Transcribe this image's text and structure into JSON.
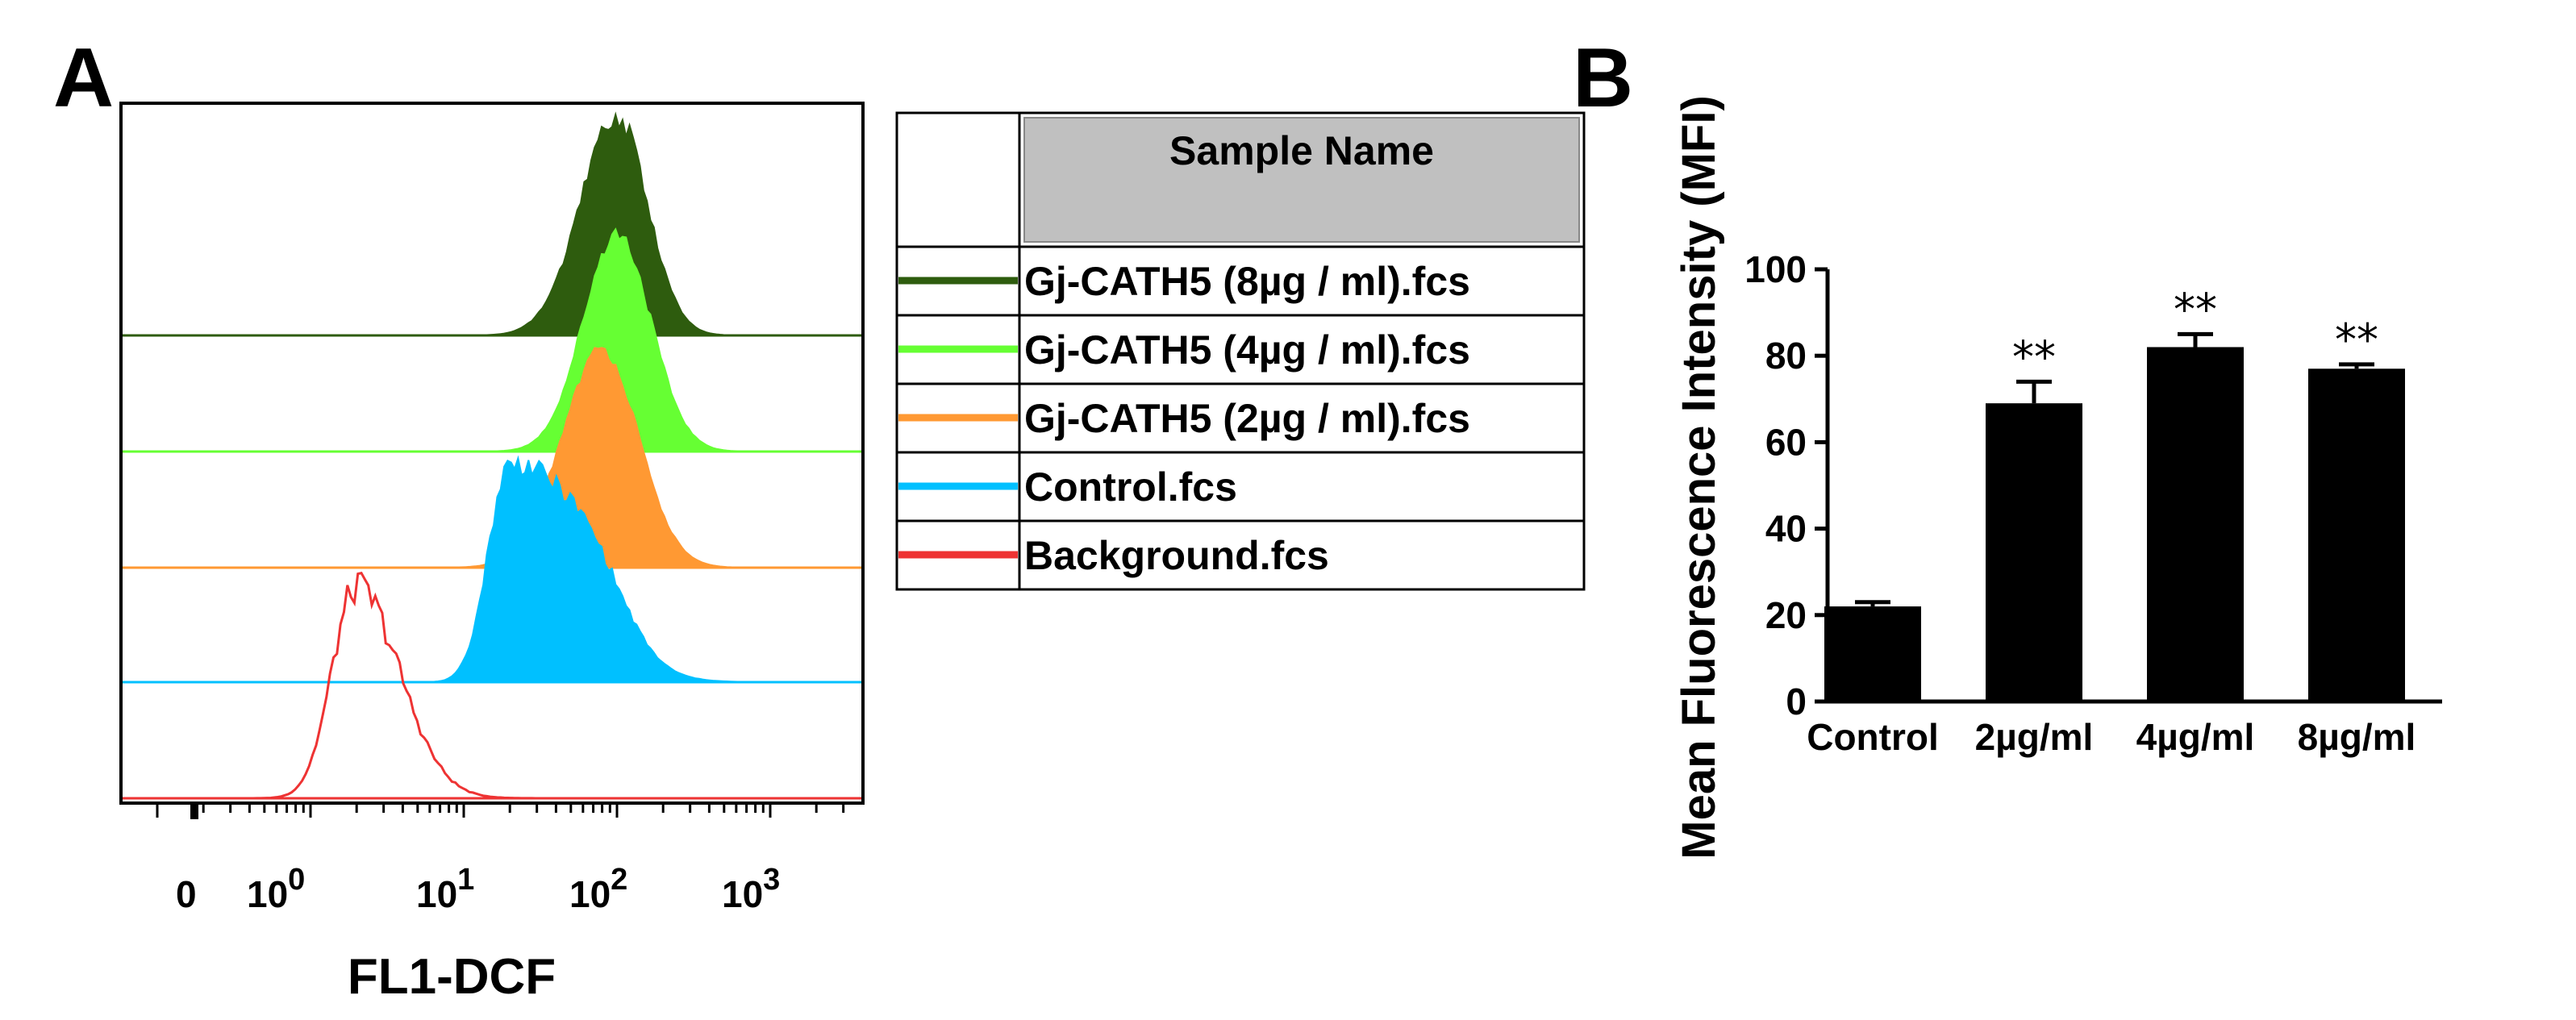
{
  "panel_a": {
    "label": "A",
    "legend": {
      "header": "Sample Name",
      "entries": [
        {
          "name": "Gj-CATH5 (8µg / ml).fcs",
          "color": "#2e5c0e"
        },
        {
          "name": "Gj-CATH5 (4µg / ml).fcs",
          "color": "#66ff33"
        },
        {
          "name": "Gj-CATH5 (2µg / ml).fcs",
          "color": "#ff9933"
        },
        {
          "name": "Control.fcs",
          "color": "#00c0ff"
        },
        {
          "name": "Background.fcs",
          "color": "#ee3333"
        }
      ]
    }
  },
  "panel_b": {
    "label": "B"
  },
  "chart_data": [
    {
      "type": "area",
      "subtype": "stacked-offset histogram (flow cytometry)",
      "xlabel": "FL1-DCF",
      "xscale": "log",
      "xticks": [
        {
          "base": "0",
          "exp": ""
        },
        {
          "base": "10",
          "exp": "0"
        },
        {
          "base": "10",
          "exp": "1"
        },
        {
          "base": "10",
          "exp": "2"
        },
        {
          "base": "10",
          "exp": "3"
        }
      ],
      "series": [
        {
          "name": "Background.fcs",
          "color": "#ee3333",
          "filled": false,
          "peak_log10": 0.3
        },
        {
          "name": "Control.fcs",
          "color": "#00c0ff",
          "filled": true,
          "peak_log10": 1.3
        },
        {
          "name": "Gj-CATH5 (2µg / ml).fcs",
          "color": "#ff9933",
          "filled": true,
          "peak_log10": 1.9
        },
        {
          "name": "Gj-CATH5 (4µg / ml).fcs",
          "color": "#66ff33",
          "filled": true,
          "peak_log10": 2.0
        },
        {
          "name": "Gj-CATH5 (8µg / ml).fcs",
          "color": "#2e5c0e",
          "filled": true,
          "peak_log10": 2.0
        }
      ]
    },
    {
      "type": "bar",
      "ylabel": "Mean Fluorescence Intensity (MFI)",
      "ylim": [
        0,
        100
      ],
      "yticks": [
        "0",
        "20",
        "40",
        "60",
        "80",
        "100"
      ],
      "categories": [
        "Control",
        "2µg/ml",
        "4µg/ml",
        "8µg/ml"
      ],
      "values": [
        22,
        69,
        82,
        77
      ],
      "errors": [
        1,
        5,
        3,
        1
      ],
      "annotations": [
        "",
        "**",
        "**",
        "**"
      ],
      "color": "#000000"
    }
  ]
}
